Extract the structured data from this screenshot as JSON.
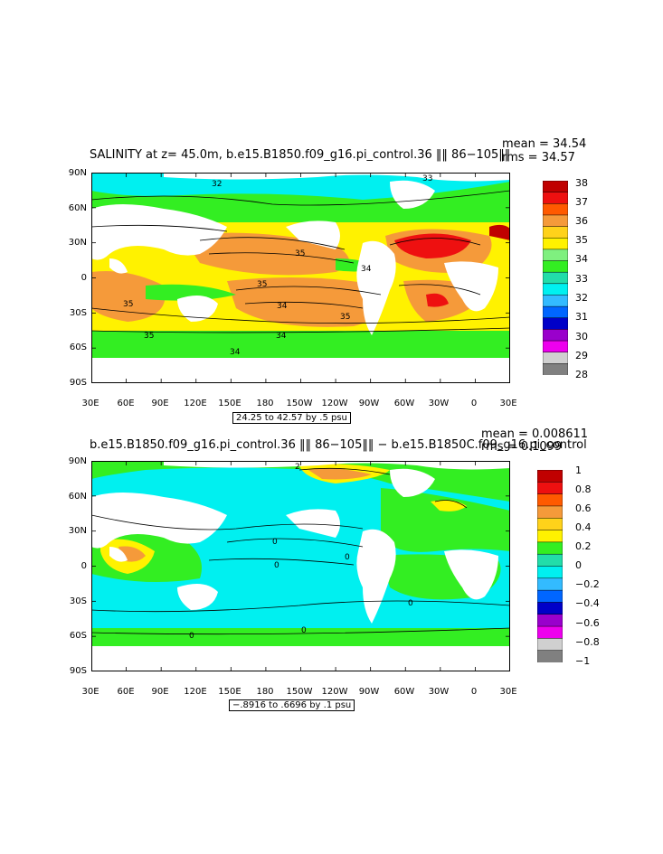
{
  "panels": [
    {
      "title": "SALINITY at z=  45.0m, b.e15.B1850.f09_g16.pi_control.36 ‖‖ 86−105‖‖",
      "mean": "mean = 34.54",
      "rms": "rms = 34.57",
      "info": "24.25 to 42.57 by .5 psu",
      "lat_labels": [
        "90N",
        "60N",
        "30N",
        "0",
        "30S",
        "60S",
        "90S"
      ],
      "lon_labels": [
        "30E",
        "60E",
        "90E",
        "120E",
        "150E",
        "180",
        "150W",
        "120W",
        "90W",
        "60W",
        "30W",
        "0",
        "30E"
      ],
      "colorbar_labels": [
        "38",
        "37",
        "36",
        "35",
        "34",
        "33",
        "32",
        "31",
        "30",
        "29",
        "28"
      ],
      "colorbar_colors": [
        "#c00000",
        "#ee1010",
        "#ff5a00",
        "#f59a3a",
        "#ffd21a",
        "#fff200",
        "#7ff07f",
        "#33ee22",
        "#22ddaa",
        "#00f0f0",
        "#33bbff",
        "#0066ff",
        "#0000c8",
        "#9a00cc",
        "#ee00ee",
        "#d0d0d0",
        "#808080"
      ],
      "contour_labels": [
        "32",
        "33",
        "35",
        "34",
        "35",
        "35",
        "35",
        "35",
        "34",
        "34",
        "34"
      ]
    },
    {
      "title": "b.e15.B1850.f09_g16.pi_control.36 ‖‖ 86−105‖‖ − b.e15.B1850C.f09_g16.pi_control",
      "mean": "mean = 0.008611",
      "rms": "rms = 0.1099",
      "info": "−.8916 to .6696 by .1 psu",
      "lat_labels": [
        "90N",
        "60N",
        "30N",
        "0",
        "30S",
        "60S",
        "90S"
      ],
      "lon_labels": [
        "30E",
        "60E",
        "90E",
        "120E",
        "150E",
        "180",
        "150W",
        "120W",
        "90W",
        "60W",
        "30W",
        "0",
        "30E"
      ],
      "colorbar_labels": [
        "1",
        "0.8",
        "0.6",
        "0.4",
        "0.2",
        "0",
        "−0.2",
        "−0.4",
        "−0.6",
        "−0.8",
        "−1"
      ],
      "colorbar_colors": [
        "#c00000",
        "#ee1010",
        "#ff5a00",
        "#f59a3a",
        "#ffd21a",
        "#fff200",
        "#33ee22",
        "#22ddaa",
        "#00f0f0",
        "#33bbff",
        "#0066ff",
        "#0000c8",
        "#9a00cc",
        "#ee00ee",
        "#d0d0d0",
        "#808080"
      ],
      "contour_labels": [
        "2",
        "0",
        "0",
        "0",
        "0",
        "0",
        "0"
      ]
    }
  ],
  "colors": {
    "land": "#ffffff",
    "contour": "#000000"
  }
}
